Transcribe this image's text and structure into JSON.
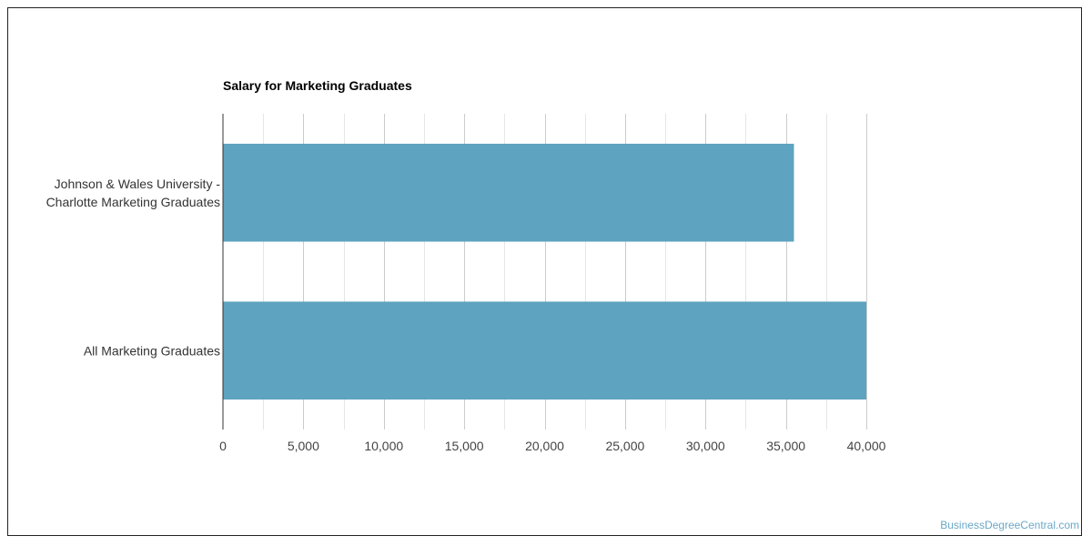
{
  "chart_data": {
    "type": "bar",
    "orientation": "horizontal",
    "title": "Salary for Marketing Graduates",
    "categories": [
      [
        "Johnson & Wales University -",
        "Charlotte Marketing Graduates"
      ],
      [
        "All Marketing Graduates"
      ]
    ],
    "values": [
      35500,
      40000
    ],
    "xlim": [
      0,
      40000
    ],
    "xticks": [
      "0",
      "5,000",
      "10,000",
      "15,000",
      "20,000",
      "25,000",
      "30,000",
      "35,000",
      "40,000"
    ],
    "grid": true,
    "bar_color": "#5ea3bf"
  },
  "watermark": "BusinessDegreeCentral.com"
}
